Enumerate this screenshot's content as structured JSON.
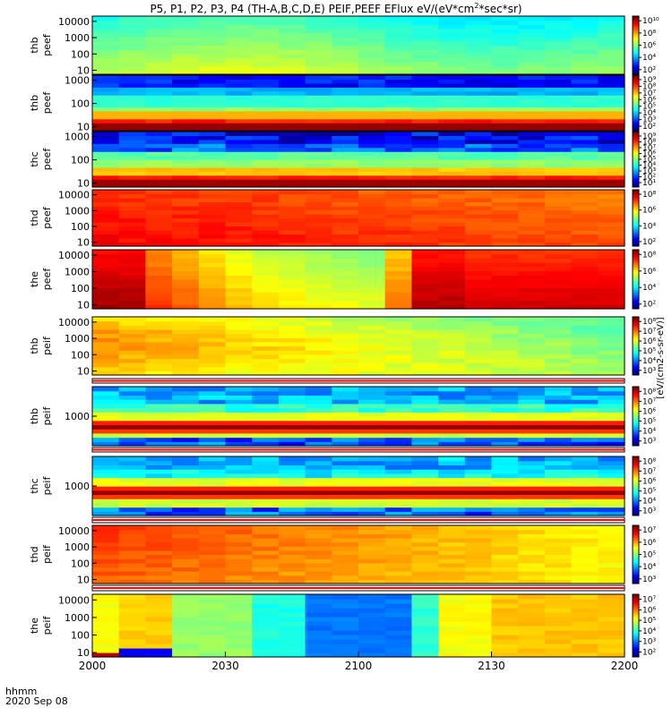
{
  "title": {
    "main": "P5, P1, P2, P3, P4 (TH-A,B,C,D,E) PEIF,PEEF EFlux eV/(eV*cm",
    "sup2": "2",
    "tail": "*sec*sr)"
  },
  "footer": {
    "time_label": "hhmm",
    "date_label": "2020 Sep 08"
  },
  "cbar_unit_label": "[eV/(cm2-s-sr-eV)]",
  "colors": {
    "axis": "#000000",
    "separator_red": "#ff0000"
  },
  "chart_data": {
    "type": "heatmap",
    "x_ticks": [
      "2000",
      "2030",
      "2100",
      "2130",
      "2200"
    ],
    "x_range": [
      "20:00",
      "22:00"
    ],
    "y_scale": "log",
    "panels": [
      {
        "label1": "thb",
        "label2": "peef",
        "yticks": [
          "10",
          "100",
          "1000",
          "10000"
        ],
        "cbar_ticks": [
          "10²",
          "10⁴",
          "10⁶",
          "10⁸",
          "10¹⁰"
        ],
        "pattern": "smooth-green-top"
      },
      {
        "label1": "thb",
        "label2": "peef",
        "yticks": [
          "10",
          "100",
          "1000"
        ],
        "cbar_ticks": [
          "10²",
          "10³",
          "10⁴",
          "10⁵",
          "10⁶",
          "10⁷",
          "10⁸",
          "10⁹"
        ],
        "pattern": "bands-b"
      },
      {
        "label1": "thc",
        "label2": "peef",
        "yticks": [
          "10",
          "100",
          "1000"
        ],
        "cbar_ticks": [
          "10¹",
          "10²",
          "10³",
          "10⁴",
          "10⁵",
          "10⁶",
          "10⁷",
          "10⁸",
          "10⁹"
        ],
        "pattern": "bands-c"
      },
      {
        "label1": "thd",
        "label2": "peef",
        "yticks": [
          "10",
          "100",
          "1000",
          "10000"
        ],
        "cbar_ticks": [
          "10²",
          "10⁴",
          "10⁶",
          "10⁸"
        ],
        "pattern": "red-orange"
      },
      {
        "label1": "the",
        "label2": "peef",
        "yticks": [
          "10",
          "100",
          "1000",
          "10000"
        ],
        "cbar_ticks": [
          "10²",
          "10⁴",
          "10⁶",
          "10⁸"
        ],
        "pattern": "red-yellow"
      },
      {
        "label1": "thb",
        "label2": "peif",
        "yticks": [
          "10",
          "100",
          "1000",
          "10000"
        ],
        "cbar_ticks": [
          "10³",
          "10⁴",
          "10⁵",
          "10⁶",
          "10⁷",
          "10⁸"
        ],
        "pattern": "peif-green"
      },
      {
        "label1": "thb",
        "label2": "peif",
        "yticks": [
          "1000"
        ],
        "cbar_ticks": [
          "10³",
          "10⁴",
          "10⁵",
          "10⁶",
          "10⁷",
          "10⁸"
        ],
        "pattern": "peif-bands-b"
      },
      {
        "label1": "thc",
        "label2": "peif",
        "yticks": [
          "1000"
        ],
        "cbar_ticks": [
          "10³",
          "10⁴",
          "10⁵",
          "10⁶",
          "10⁷",
          "10⁸"
        ],
        "pattern": "peif-bands-c"
      },
      {
        "label1": "thd",
        "label2": "peif",
        "yticks": [
          "10",
          "100",
          "1000",
          "10000"
        ],
        "cbar_ticks": [
          "10³",
          "10⁴",
          "10⁵",
          "10⁶",
          "10⁷"
        ],
        "pattern": "peif-orange"
      },
      {
        "label1": "the",
        "label2": "peif",
        "yticks": [
          "10",
          "100",
          "1000",
          "10000"
        ],
        "cbar_ticks": [
          "10²",
          "10³",
          "10⁴",
          "10⁵",
          "10⁶",
          "10⁷"
        ],
        "pattern": "peif-mixed"
      }
    ]
  }
}
